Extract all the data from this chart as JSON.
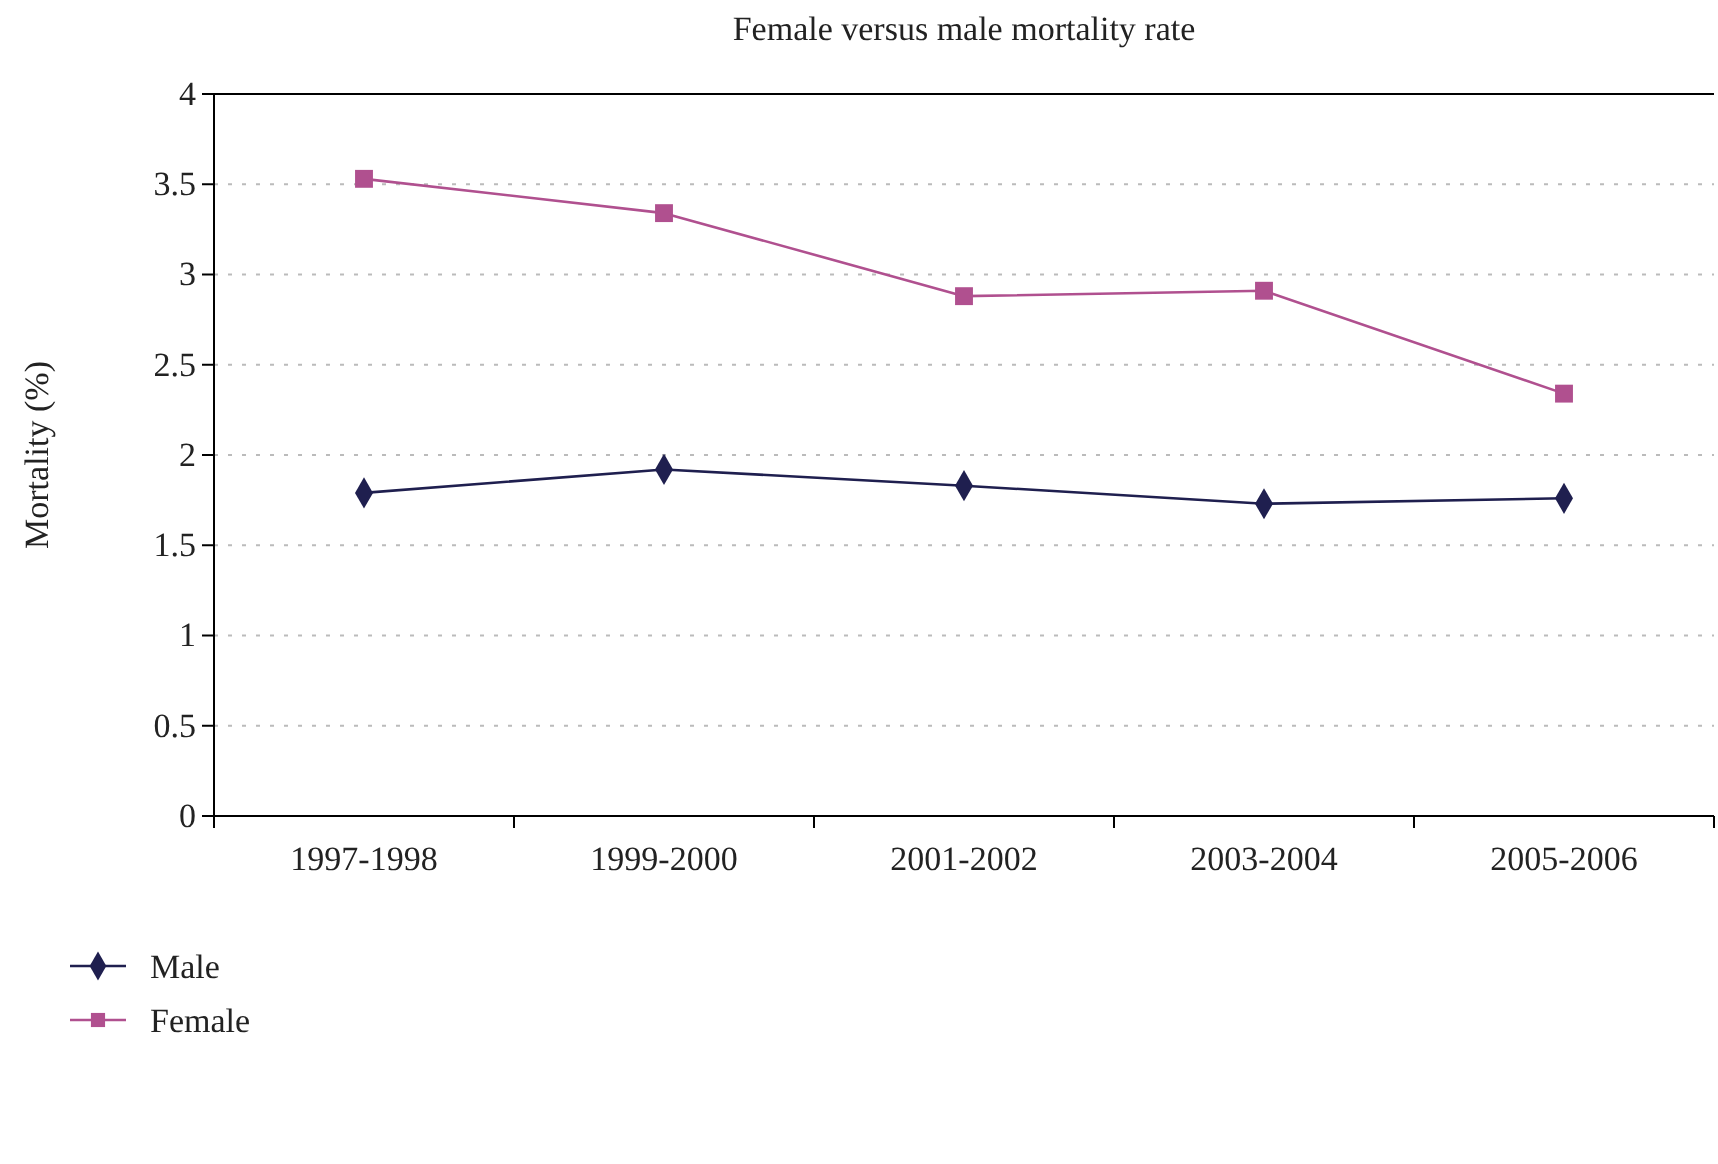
{
  "chart_data": {
    "type": "line",
    "title": "Female versus male mortality rate",
    "ylabel": "Mortality (%)",
    "categories": [
      "1997-1998",
      "1999-2000",
      "2001-2002",
      "2003-2004",
      "2005-2006"
    ],
    "series": [
      {
        "name": "Male",
        "color": "#1f1f4f",
        "marker": "diamond",
        "values": [
          1.79,
          1.92,
          1.83,
          1.73,
          1.76
        ]
      },
      {
        "name": "Female",
        "color": "#b0508f",
        "marker": "square",
        "values": [
          3.53,
          3.34,
          2.88,
          2.91,
          2.34
        ]
      }
    ],
    "ylim": [
      0,
      4
    ],
    "yticks": [
      0,
      0.5,
      1,
      1.5,
      2,
      2.5,
      3,
      3.5,
      4
    ],
    "grid": "y",
    "legend": "bottom left",
    "line_style": "solid"
  }
}
